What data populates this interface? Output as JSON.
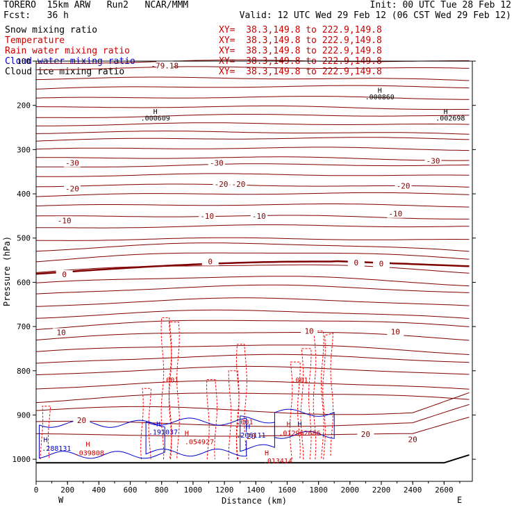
{
  "header": {
    "line1_left": "TORERO  15km ARW   Run2   NCAR/MMM",
    "line1_right": "Init: 00 UTC Tue 28 Feb 12",
    "line2_left": "Fcst:   36 h",
    "line2_right": "Valid: 12 UTC Wed 29 Feb 12 (06 CST Wed 29 Feb 12)"
  },
  "fields": [
    {
      "name": "Snow mixing ratio",
      "xy": "XY=  38.3,149.8 to 222.9,149.8",
      "color": "#000000"
    },
    {
      "name": "Temperature",
      "xy": "XY=  38.3,149.8 to 222.9,149.8",
      "color": "#cc0000"
    },
    {
      "name": "Rain water mixing ratio",
      "xy": "XY=  38.3,149.8 to 222.9,149.8",
      "color": "#cc0000"
    },
    {
      "name": "Cloud water mixing ratio",
      "xy": "XY=  38.3,149.8 to 222.9,149.8",
      "color": "#0000cc"
    },
    {
      "name": "Cloud ice mixing ratio",
      "xy": "XY=  38.3,149.8 to 222.9,149.8",
      "color": "#000000"
    }
  ],
  "chart_data": {
    "type": "line",
    "xlabel": "Distance (km)",
    "ylabel": "Pressure (hPa)",
    "xlim": [
      0,
      2780
    ],
    "ylim": [
      1050,
      100
    ],
    "x_ticks": [
      0,
      200,
      400,
      600,
      800,
      1000,
      1200,
      1400,
      1600,
      1800,
      2000,
      2200,
      2400,
      2600
    ],
    "y_ticks": [
      100,
      200,
      300,
      400,
      500,
      600,
      700,
      800,
      900,
      1000
    ],
    "x_end_labels": {
      "left": "W",
      "right": "E"
    },
    "colors": {
      "isotherm": "#800000",
      "zero_isotherm": "#800000",
      "rain": "#ff0000",
      "cloud_water": "#0000cc",
      "ground": "#000000"
    },
    "isotherm_labels": [
      {
        "text": "-79.18",
        "x": 820,
        "p": 110
      },
      {
        "text": "-30",
        "x": 230,
        "p": 330
      },
      {
        "text": "-30",
        "x": 1150,
        "p": 330
      },
      {
        "text": "-30",
        "x": 2530,
        "p": 325
      },
      {
        "text": "-20",
        "x": 230,
        "p": 388
      },
      {
        "text": "-20",
        "x": 1180,
        "p": 378
      },
      {
        "text": "-20",
        "x": 1290,
        "p": 378
      },
      {
        "text": "-20",
        "x": 2340,
        "p": 382
      },
      {
        "text": "-10",
        "x": 180,
        "p": 460
      },
      {
        "text": "-10",
        "x": 1090,
        "p": 450
      },
      {
        "text": "-10",
        "x": 1420,
        "p": 450
      },
      {
        "text": "-10",
        "x": 2290,
        "p": 445
      },
      {
        "text": "0",
        "x": 180,
        "p": 582
      },
      {
        "text": "0",
        "x": 1110,
        "p": 553
      },
      {
        "text": "0",
        "x": 2040,
        "p": 555
      },
      {
        "text": "0",
        "x": 2200,
        "p": 558
      },
      {
        "text": "10",
        "x": 160,
        "p": 713
      },
      {
        "text": "10",
        "x": 1740,
        "p": 710
      },
      {
        "text": "10",
        "x": 2290,
        "p": 712
      },
      {
        "text": "20",
        "x": 290,
        "p": 912
      },
      {
        "text": "20",
        "x": 1370,
        "p": 948
      },
      {
        "text": "20",
        "x": 2100,
        "p": 943
      },
      {
        "text": "20",
        "x": 2400,
        "p": 955
      }
    ],
    "extrema_labels": [
      {
        "text": "H",
        "x": 2190,
        "p": 165,
        "color": "#000000"
      },
      {
        "text": ".000860",
        "x": 2190,
        "p": 180,
        "color": "#000000"
      },
      {
        "text": "H",
        "x": 760,
        "p": 213,
        "color": "#000000"
      },
      {
        "text": ".000609",
        "x": 760,
        "p": 228,
        "color": "#000000"
      },
      {
        "text": "H",
        "x": 2610,
        "p": 213,
        "color": "#000000"
      },
      {
        "text": ".002698",
        "x": 2640,
        "p": 228,
        "color": "#000000"
      },
      {
        "text": ".001",
        "x": 855,
        "p": 820,
        "color": "#cc0000"
      },
      {
        "text": ".001",
        "x": 1680,
        "p": 820,
        "color": "#cc0000"
      },
      {
        "text": ".001",
        "x": 1330,
        "p": 915,
        "color": "#cc0000"
      },
      {
        "text": "H",
        "x": 780,
        "p": 920,
        "color": "#0000cc"
      },
      {
        "text": ".191037",
        "x": 810,
        "p": 938,
        "color": "#0000cc"
      },
      {
        "text": "H",
        "x": 960,
        "p": 940,
        "color": "#cc0000"
      },
      {
        "text": ".054927",
        "x": 1040,
        "p": 960,
        "color": "#cc0000"
      },
      {
        "text": "H",
        "x": 1350,
        "p": 925,
        "color": "#0000cc"
      },
      {
        "text": ".206111",
        "x": 1370,
        "p": 945,
        "color": "#0000cc"
      },
      {
        "text": "H",
        "x": 1610,
        "p": 920,
        "color": "#cc0000"
      },
      {
        "text": "H",
        "x": 1680,
        "p": 920,
        "color": "#0000cc"
      },
      {
        "text": ".012962686",
        "x": 1680,
        "p": 940,
        "color": "#cc0000"
      },
      {
        "text": "H",
        "x": 60,
        "p": 955,
        "color": "#0000cc"
      },
      {
        "text": ".288131",
        "x": 130,
        "p": 975,
        "color": "#0000cc"
      },
      {
        "text": "H",
        "x": 330,
        "p": 965,
        "color": "#cc0000"
      },
      {
        "text": ".039808",
        "x": 340,
        "p": 985,
        "color": "#cc0000"
      },
      {
        "text": "H",
        "x": 1470,
        "p": 985,
        "color": "#cc0000"
      },
      {
        "text": ".013414",
        "x": 1540,
        "p": 1003,
        "color": "#cc0000"
      }
    ]
  }
}
